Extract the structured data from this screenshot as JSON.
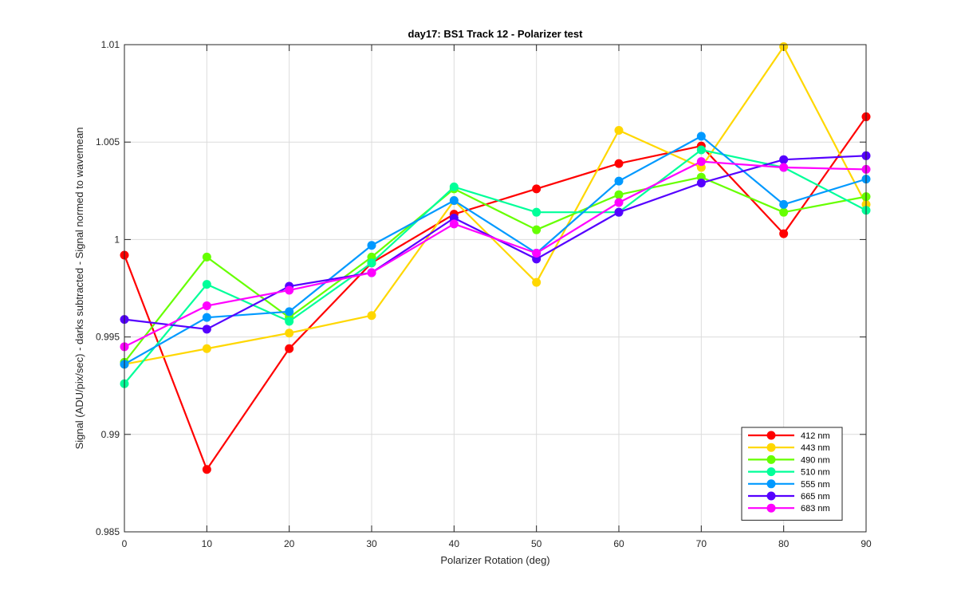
{
  "chart_data": {
    "type": "line",
    "title": "day17: BS1  Track 12 - Polarizer test",
    "xlabel": "Polarizer Rotation (deg)",
    "ylabel": "Signal (ADU/pix/sec) - darks subtracted - Signal normed to wavemean",
    "xlim": [
      0,
      90
    ],
    "ylim": [
      0.985,
      1.01
    ],
    "xticks": [
      0,
      10,
      20,
      30,
      40,
      50,
      60,
      70,
      80,
      90
    ],
    "yticks": [
      0.985,
      0.99,
      0.995,
      1.0,
      1.005,
      1.01
    ],
    "xtick_labels": [
      "0",
      "10",
      "20",
      "30",
      "40",
      "50",
      "60",
      "70",
      "80",
      "90"
    ],
    "ytick_labels": [
      "0.985",
      "0.99",
      "0.995",
      "1",
      "1.005",
      "1.01"
    ],
    "grid": true,
    "legend_position": "bottom-right",
    "x": [
      0,
      10,
      20,
      30,
      40,
      50,
      60,
      70,
      80,
      90
    ],
    "series": [
      {
        "name": "412 nm",
        "color": "#ff0000",
        "values": [
          0.9992,
          0.9882,
          0.9944,
          0.9988,
          1.0013,
          1.0026,
          1.0039,
          1.0048,
          1.0003,
          1.0063
        ]
      },
      {
        "name": "443 nm",
        "color": "#ffd700",
        "values": [
          0.9936,
          0.9944,
          0.9952,
          0.9961,
          1.002,
          0.9978,
          1.0056,
          1.0037,
          1.0099,
          1.0018
        ]
      },
      {
        "name": "490 nm",
        "color": "#66ff00",
        "values": [
          0.9937,
          0.9991,
          0.996,
          0.9991,
          1.0026,
          1.0005,
          1.0023,
          1.0032,
          1.0014,
          1.0022
        ]
      },
      {
        "name": "510 nm",
        "color": "#00ff99",
        "values": [
          0.9926,
          0.9977,
          0.9958,
          0.9988,
          1.0027,
          1.0014,
          1.0014,
          1.0046,
          1.0037,
          1.0015
        ]
      },
      {
        "name": "555 nm",
        "color": "#0099ff",
        "values": [
          0.9936,
          0.996,
          0.9963,
          0.9997,
          1.002,
          0.9993,
          1.003,
          1.0053,
          1.0018,
          1.0031
        ]
      },
      {
        "name": "665 nm",
        "color": "#5500ff",
        "values": [
          0.9959,
          0.9954,
          0.9976,
          0.9983,
          1.0011,
          0.999,
          1.0014,
          1.0029,
          1.0041,
          1.0043
        ]
      },
      {
        "name": "683 nm",
        "color": "#ff00ff",
        "values": [
          0.9945,
          0.9966,
          0.9974,
          0.9983,
          1.0008,
          0.9993,
          1.0019,
          1.004,
          1.0037,
          1.0036
        ]
      }
    ]
  }
}
